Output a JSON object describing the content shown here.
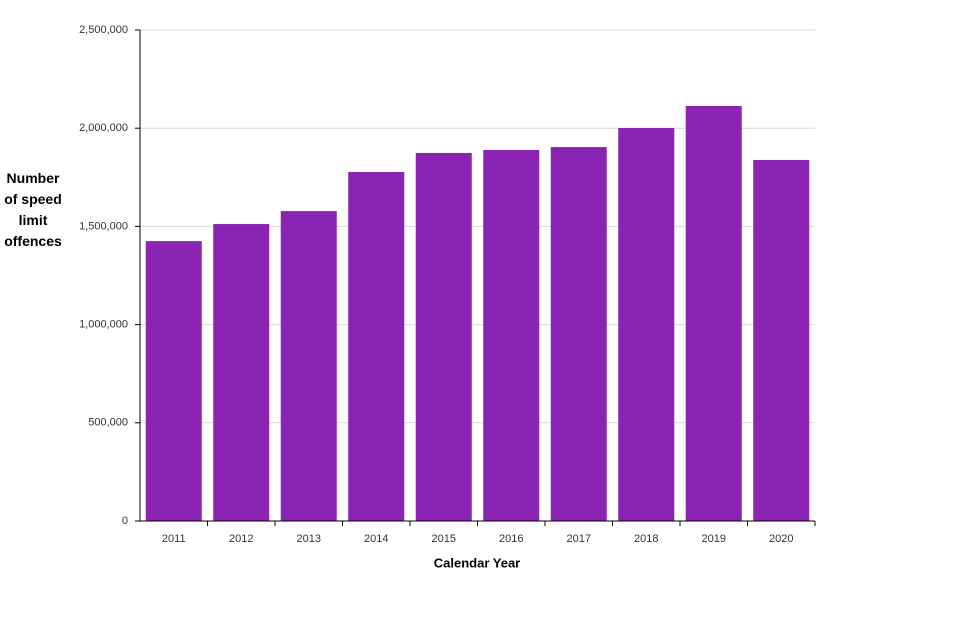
{
  "chart_data": {
    "type": "bar",
    "x_label": "Calendar Year",
    "y_label": "Number of speed limit offences",
    "categories": [
      "2011",
      "2012",
      "2013",
      "2014",
      "2015",
      "2016",
      "2017",
      "2018",
      "2019",
      "2020"
    ],
    "values": [
      1425000,
      1512000,
      1578000,
      1777000,
      1874000,
      1889000,
      1904000,
      2001000,
      2113000,
      1838000
    ],
    "color": "#8b24b4",
    "ylim": [
      0,
      2500000
    ],
    "yticks": [
      0,
      {
        "value": 500000,
        "label": "500,000"
      },
      {
        "value": 1000000,
        "label": "1,000,000"
      },
      {
        "value": 1500000,
        "label": "1,500,000"
      },
      {
        "value": 2000000,
        "label": "2,000,000"
      },
      {
        "value": 2500000,
        "label": "2,500,000"
      }
    ],
    "grid": true
  }
}
